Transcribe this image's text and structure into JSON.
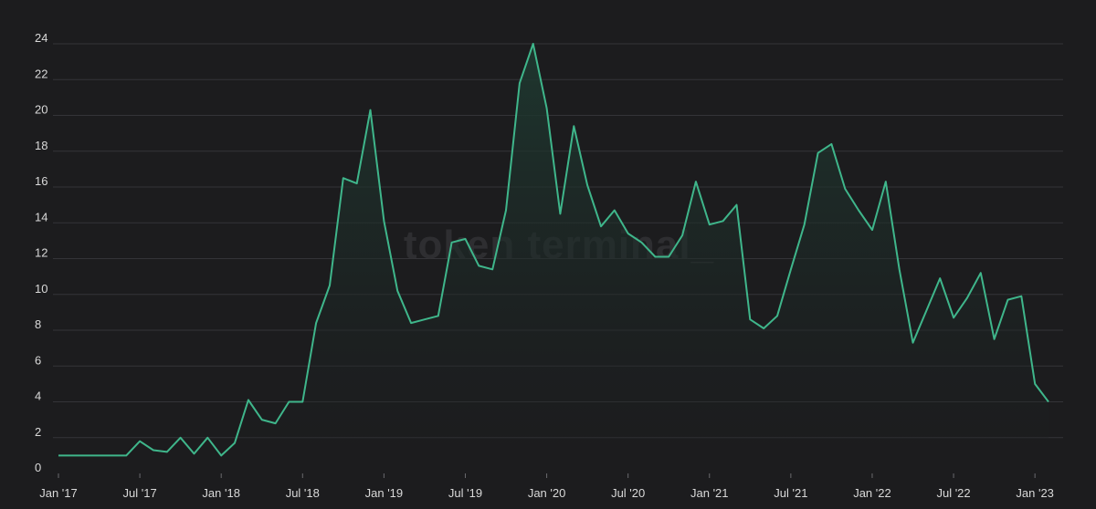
{
  "watermark": "token terminal_",
  "colors": {
    "background": "#1c1c1e",
    "line": "#3fb68b",
    "area_top": "#1e3a31",
    "grid": "#343438",
    "tick_text": "#d9d9d9"
  },
  "chart_data": {
    "type": "area",
    "title": "",
    "xlabel": "",
    "ylabel": "",
    "grid": true,
    "legend": "none",
    "ylim": [
      0,
      24
    ],
    "y_ticks": [
      0,
      2,
      4,
      6,
      8,
      10,
      12,
      14,
      16,
      18,
      20,
      22,
      24
    ],
    "x_ticks": [
      {
        "label": "Jan '17",
        "date": "2017-01"
      },
      {
        "label": "Jul '17",
        "date": "2017-07"
      },
      {
        "label": "Jan '18",
        "date": "2018-01"
      },
      {
        "label": "Jul '18",
        "date": "2018-07"
      },
      {
        "label": "Jan '19",
        "date": "2019-01"
      },
      {
        "label": "Jul '19",
        "date": "2019-07"
      },
      {
        "label": "Jan '20",
        "date": "2020-01"
      },
      {
        "label": "Jul '20",
        "date": "2020-07"
      },
      {
        "label": "Jan '21",
        "date": "2021-01"
      },
      {
        "label": "Jul '21",
        "date": "2021-07"
      },
      {
        "label": "Jan '22",
        "date": "2022-01"
      },
      {
        "label": "Jul '22",
        "date": "2022-07"
      },
      {
        "label": "Jan '23",
        "date": "2023-01"
      }
    ],
    "series": [
      {
        "x": [
          "2017-01",
          "2017-02",
          "2017-03",
          "2017-04",
          "2017-05",
          "2017-06",
          "2017-07",
          "2017-08",
          "2017-09",
          "2017-10",
          "2017-11",
          "2017-12",
          "2018-01",
          "2018-02",
          "2018-03",
          "2018-04",
          "2018-05",
          "2018-06",
          "2018-07",
          "2018-08",
          "2018-09",
          "2018-10",
          "2018-11",
          "2018-12",
          "2019-01",
          "2019-02",
          "2019-03",
          "2019-04",
          "2019-05",
          "2019-06",
          "2019-07",
          "2019-08",
          "2019-09",
          "2019-10",
          "2019-11",
          "2019-12",
          "2020-01",
          "2020-02",
          "2020-03",
          "2020-04",
          "2020-05",
          "2020-06",
          "2020-07",
          "2020-08",
          "2020-09",
          "2020-10",
          "2020-11",
          "2020-12",
          "2021-01",
          "2021-02",
          "2021-03",
          "2021-04",
          "2021-05",
          "2021-06",
          "2021-07",
          "2021-08",
          "2021-09",
          "2021-10",
          "2021-11",
          "2021-12",
          "2022-01",
          "2022-02",
          "2022-03",
          "2022-04",
          "2022-05",
          "2022-06",
          "2022-07",
          "2022-08",
          "2022-09",
          "2022-10",
          "2022-11",
          "2022-12",
          "2023-01",
          "2023-02"
        ],
        "values": [
          1.0,
          1.0,
          1.0,
          1.0,
          1.0,
          1.0,
          1.8,
          1.3,
          1.2,
          2.0,
          1.1,
          2.0,
          1.0,
          1.7,
          4.1,
          3.0,
          2.8,
          4.0,
          4.0,
          8.4,
          10.5,
          16.5,
          16.2,
          20.3,
          14.1,
          10.2,
          8.4,
          8.6,
          8.8,
          12.9,
          13.1,
          11.6,
          11.4,
          14.7,
          21.8,
          24.0,
          20.4,
          14.5,
          19.4,
          16.1,
          13.8,
          14.7,
          13.4,
          12.9,
          12.1,
          12.1,
          13.3,
          16.3,
          13.9,
          14.1,
          15.0,
          8.6,
          8.1,
          8.8,
          11.4,
          13.9,
          17.9,
          18.4,
          15.9,
          14.7,
          13.6,
          16.3,
          11.4,
          7.3,
          9.1,
          10.9,
          8.7,
          9.8,
          11.2,
          7.5,
          9.7,
          9.9,
          5.0,
          4.0
        ]
      }
    ]
  }
}
